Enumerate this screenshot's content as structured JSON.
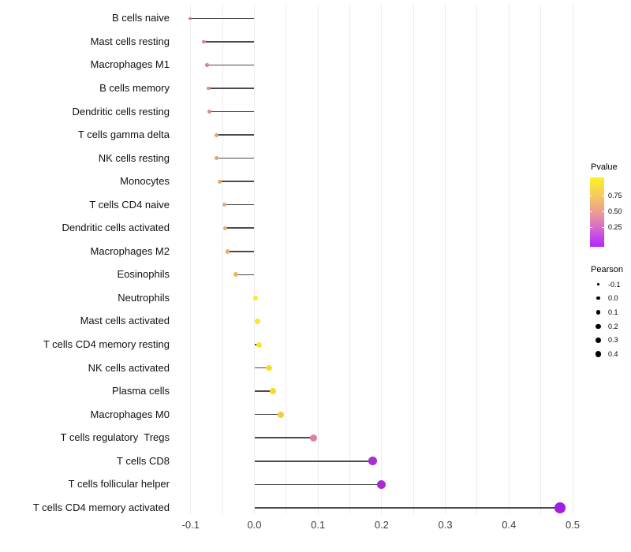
{
  "chart_data": {
    "type": "lollipop",
    "title": "",
    "xlabel": "",
    "ylabel": "",
    "xlim": [
      -0.13,
      0.51
    ],
    "x_tick_labels": [
      "-0.1",
      "0.0",
      "0.1",
      "0.2",
      "0.3",
      "0.4",
      "0.5"
    ],
    "x_tick_values": [
      -0.1,
      0.0,
      0.1,
      0.2,
      0.3,
      0.4,
      0.5
    ],
    "grid": "vertical only, light gray, every 0.05",
    "legend_position": "right",
    "stem_color": "#4a4a4a",
    "points": [
      {
        "label": "B cells naive",
        "pearson": -0.101,
        "color": "#CE6A81",
        "radius": 1.6
      },
      {
        "label": "Mast cells resting",
        "pearson": -0.079,
        "color": "#DF8487",
        "radius": 2.3
      },
      {
        "label": "Macrophages M1",
        "pearson": -0.074,
        "color": "#DF8487",
        "radius": 2.3
      },
      {
        "label": "B cells memory",
        "pearson": -0.072,
        "color": "#E18B82",
        "radius": 2.4
      },
      {
        "label": "Dendritic cells resting",
        "pearson": -0.071,
        "color": "#E18B82",
        "radius": 2.4
      },
      {
        "label": "T cells gamma delta",
        "pearson": -0.06,
        "color": "#E89F77",
        "radius": 2.5
      },
      {
        "label": "NK cells resting",
        "pearson": -0.059,
        "color": "#E9A173",
        "radius": 2.5
      },
      {
        "label": "Monocytes",
        "pearson": -0.055,
        "color": "#EAA76D",
        "radius": 2.6
      },
      {
        "label": "T cells CD4 naive",
        "pearson": -0.047,
        "color": "#EAAA68",
        "radius": 2.7
      },
      {
        "label": "Dendritic cells activated",
        "pearson": -0.046,
        "color": "#EAAA68",
        "radius": 2.7
      },
      {
        "label": "Macrophages M2",
        "pearson": -0.042,
        "color": "#EBAD64",
        "radius": 2.8
      },
      {
        "label": "Eosinophils",
        "pearson": -0.029,
        "color": "#EBB55C",
        "radius": 2.9
      },
      {
        "label": "Neutrophils",
        "pearson": 0.002,
        "color": "#FAEC21",
        "radius": 3.3
      },
      {
        "label": "Mast cells activated",
        "pearson": 0.005,
        "color": "#F9EA23",
        "radius": 3.4
      },
      {
        "label": "T cells CD4 memory resting",
        "pearson": 0.008,
        "color": "#F8E826",
        "radius": 3.5
      },
      {
        "label": "NK cells activated",
        "pearson": 0.023,
        "color": "#F6DF2B",
        "radius": 3.6
      },
      {
        "label": "Plasma cells",
        "pearson": 0.029,
        "color": "#F5DA2F",
        "radius": 3.7
      },
      {
        "label": "Macrophages M0",
        "pearson": 0.042,
        "color": "#F2CC3B",
        "radius": 3.9
      },
      {
        "label": "T cells regulatory  Tregs",
        "pearson": 0.093,
        "color": "#DD7FA8",
        "radius": 4.6
      },
      {
        "label": "T cells CD8",
        "pearson": 0.186,
        "color": "#A82FD3",
        "radius": 5.4
      },
      {
        "label": "T cells follicular helper",
        "pearson": 0.2,
        "color": "#A72DD2",
        "radius": 5.6
      },
      {
        "label": "T cells CD4 memory activated",
        "pearson": 0.48,
        "color": "#A021DF",
        "radius": 6.7
      }
    ],
    "legend_pvalue": {
      "title": "Pvalue",
      "tick_labels": [
        "0.75",
        "0.50",
        "0.25"
      ],
      "gradient_top_color": "#FCF226",
      "gradient_mid_color": "#E7929F",
      "gradient_bottom_color": "#B32AF7"
    },
    "legend_pearson": {
      "title": "Pearson",
      "items": [
        {
          "label": "-0.1",
          "radius": 1.3
        },
        {
          "label": "0.0",
          "radius": 2.3
        },
        {
          "label": "0.1",
          "radius": 2.7
        },
        {
          "label": "0.2",
          "radius": 3.1
        },
        {
          "label": "0.3",
          "radius": 3.5
        },
        {
          "label": "0.4",
          "radius": 3.9
        }
      ]
    }
  }
}
